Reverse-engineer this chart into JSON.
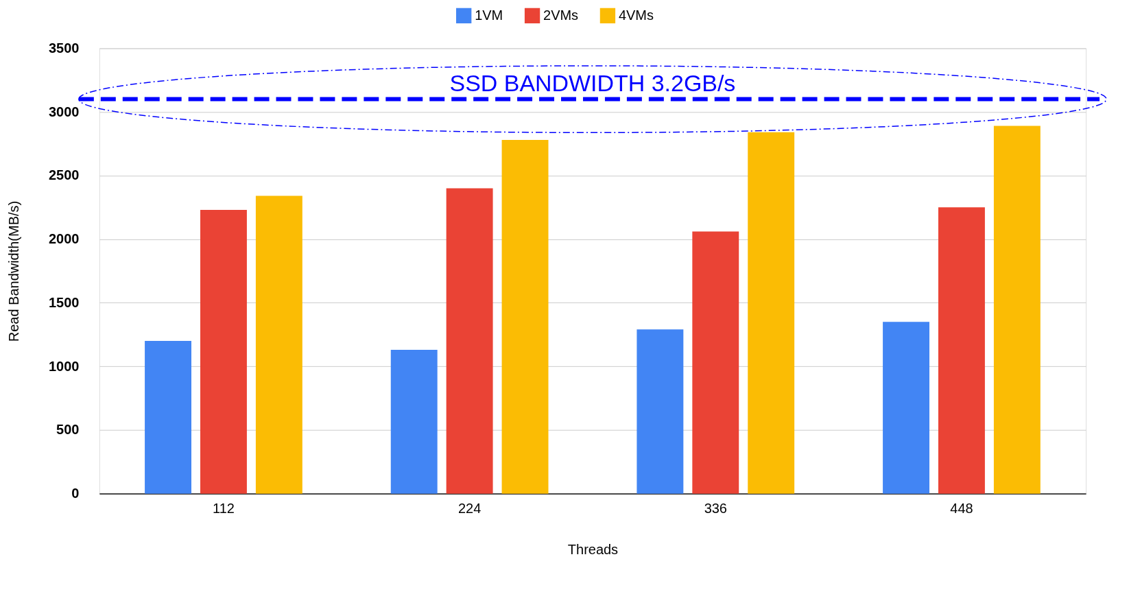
{
  "chart_data": {
    "type": "bar",
    "xlabel": "Threads",
    "ylabel": "Read Bandwidth(MB/s)",
    "categories": [
      "112",
      "224",
      "336",
      "448"
    ],
    "series": [
      {
        "name": "1VM",
        "color": "#4285f4",
        "values": [
          1200,
          1130,
          1290,
          1350
        ]
      },
      {
        "name": "2VMs",
        "color": "#ea4335",
        "values": [
          2230,
          2400,
          2060,
          2250
        ]
      },
      {
        "name": "4VMs",
        "color": "#fbbc04",
        "values": [
          2340,
          2780,
          2840,
          2890
        ]
      }
    ],
    "ylim": [
      0,
      3500
    ],
    "yticks": [
      0,
      500,
      1000,
      1500,
      2000,
      2500,
      3000,
      3500
    ],
    "ref_lines": [
      {
        "axis": "y",
        "value": 3100,
        "label": "SSD BANDWIDTH 3.2GB/s",
        "color": "#0000ff",
        "line_style": "dashed"
      }
    ],
    "grid": "y",
    "legend": "top"
  }
}
